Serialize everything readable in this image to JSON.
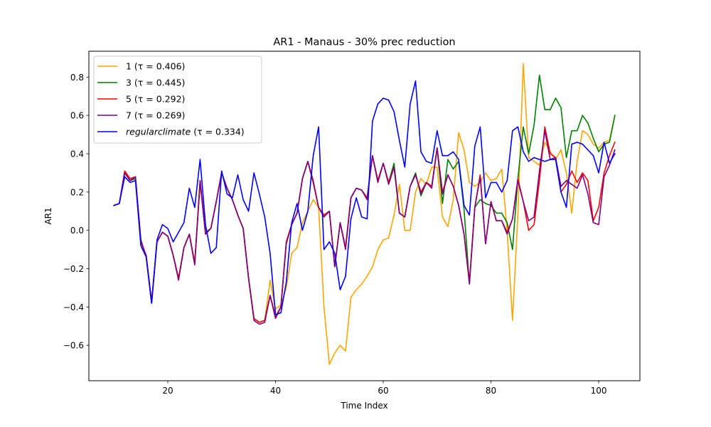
{
  "chart_data": {
    "type": "line",
    "title": "AR1 - Manaus - 30% prec reduction",
    "xlabel": "Time Index",
    "ylabel": "AR1",
    "xlim": [
      5.35,
      107.65
    ],
    "ylim": [
      -0.785,
      0.935
    ],
    "xticks": [
      20,
      40,
      60,
      80,
      100
    ],
    "yticks": [
      -0.6,
      -0.4,
      -0.2,
      0.0,
      0.2,
      0.4,
      0.6,
      0.8
    ],
    "ytick_labels": [
      "−0.6",
      "−0.4",
      "−0.2",
      "0.0",
      "0.2",
      "0.4",
      "0.6",
      "0.8"
    ],
    "grid": false,
    "legend_position": "upper-left",
    "x": [
      10,
      11,
      12,
      13,
      14,
      15,
      16,
      17,
      18,
      19,
      20,
      21,
      22,
      23,
      24,
      25,
      26,
      27,
      28,
      29,
      30,
      31,
      32,
      33,
      34,
      35,
      36,
      37,
      38,
      39,
      40,
      41,
      42,
      43,
      44,
      45,
      46,
      47,
      48,
      49,
      50,
      51,
      52,
      53,
      54,
      55,
      56,
      57,
      58,
      59,
      60,
      61,
      62,
      63,
      64,
      65,
      66,
      67,
      68,
      69,
      70,
      71,
      72,
      73,
      74,
      75,
      76,
      77,
      78,
      79,
      80,
      81,
      82,
      83,
      84,
      85,
      86,
      87,
      88,
      89,
      90,
      91,
      92,
      93,
      94,
      95,
      96,
      97,
      98,
      99,
      100,
      101,
      102,
      103
    ],
    "series": [
      {
        "name": "1",
        "tau_label": "(τ = 0.406)",
        "color": "#ffa500",
        "values": [
          0.13,
          0.14,
          0.3,
          0.26,
          0.27,
          -0.05,
          -0.14,
          -0.38,
          -0.06,
          -0.01,
          -0.03,
          -0.13,
          -0.25,
          -0.09,
          -0.02,
          -0.17,
          0.24,
          -0.01,
          0.01,
          0.15,
          0.3,
          0.22,
          0.16,
          0.08,
          0.01,
          -0.25,
          -0.46,
          -0.48,
          -0.47,
          -0.26,
          -0.41,
          -0.39,
          -0.3,
          -0.12,
          -0.09,
          0.04,
          0.1,
          0.16,
          0.12,
          -0.4,
          -0.7,
          -0.64,
          -0.6,
          -0.63,
          -0.35,
          -0.31,
          -0.28,
          -0.24,
          -0.19,
          -0.1,
          -0.05,
          -0.04,
          0.08,
          0.24,
          0.0,
          0.0,
          0.2,
          0.27,
          0.24,
          0.33,
          0.33,
          0.07,
          0.02,
          0.16,
          0.51,
          0.42,
          0.25,
          0.23,
          0.25,
          0.3,
          0.26,
          0.27,
          0.32,
          0.0,
          -0.47,
          0.08,
          0.87,
          0.38,
          0.36,
          0.34,
          0.46,
          0.41,
          0.37,
          0.42,
          0.3,
          0.09,
          0.36,
          0.52,
          0.5,
          0.45,
          0.43,
          0.46,
          0.47,
          0.6
        ]
      },
      {
        "name": "3",
        "tau_label": "(τ = 0.445)",
        "color": "#008000",
        "values": [
          0.13,
          0.14,
          0.3,
          0.26,
          0.27,
          -0.05,
          -0.14,
          -0.38,
          -0.06,
          -0.01,
          -0.03,
          -0.13,
          -0.25,
          -0.09,
          -0.02,
          -0.17,
          0.25,
          -0.01,
          0.01,
          0.15,
          0.3,
          0.22,
          0.16,
          0.08,
          0.01,
          -0.25,
          -0.46,
          -0.48,
          -0.47,
          -0.34,
          -0.45,
          -0.4,
          -0.06,
          0.03,
          0.09,
          0.27,
          0.36,
          0.25,
          0.12,
          0.08,
          0.1,
          -0.19,
          0.04,
          -0.09,
          0.17,
          0.22,
          0.21,
          0.17,
          0.39,
          0.26,
          0.35,
          0.25,
          0.35,
          0.09,
          0.07,
          0.23,
          0.3,
          0.18,
          0.25,
          0.23,
          0.43,
          0.14,
          0.37,
          0.32,
          0.36,
          0.11,
          -0.28,
          0.12,
          0.16,
          0.14,
          0.13,
          0.09,
          0.09,
          0.04,
          -0.1,
          0.27,
          0.54,
          0.4,
          0.55,
          0.81,
          0.63,
          0.63,
          0.69,
          0.64,
          0.38,
          0.52,
          0.52,
          0.6,
          0.56,
          0.48,
          0.41,
          0.45,
          0.46,
          0.6
        ]
      },
      {
        "name": "5",
        "tau_label": "(τ = 0.292)",
        "color": "#ff0000",
        "values": [
          0.13,
          0.14,
          0.31,
          0.27,
          0.28,
          -0.06,
          -0.13,
          -0.37,
          -0.06,
          -0.01,
          -0.03,
          -0.13,
          -0.25,
          -0.09,
          -0.02,
          -0.17,
          0.26,
          -0.02,
          0.01,
          0.15,
          0.3,
          0.22,
          0.16,
          0.08,
          0.01,
          -0.25,
          -0.46,
          -0.48,
          -0.47,
          -0.34,
          -0.45,
          -0.4,
          -0.06,
          0.03,
          0.09,
          0.27,
          0.36,
          0.26,
          0.12,
          0.08,
          0.1,
          -0.19,
          0.04,
          -0.09,
          0.17,
          0.22,
          0.21,
          0.17,
          0.39,
          0.26,
          0.35,
          0.25,
          0.33,
          0.09,
          0.07,
          0.23,
          0.29,
          0.2,
          0.25,
          0.23,
          0.43,
          0.2,
          0.29,
          0.23,
          0.13,
          -0.02,
          -0.27,
          0.12,
          0.29,
          -0.07,
          0.15,
          0.05,
          0.05,
          -0.01,
          0.06,
          0.27,
          0.15,
          0.0,
          0.03,
          0.26,
          0.54,
          0.4,
          0.38,
          0.2,
          0.24,
          0.31,
          0.25,
          0.3,
          0.26,
          0.05,
          0.12,
          0.3,
          0.39,
          0.46
        ]
      },
      {
        "name": "7",
        "tau_label": "(τ = 0.269)",
        "color": "#800080",
        "values": [
          0.13,
          0.14,
          0.3,
          0.26,
          0.28,
          -0.05,
          -0.14,
          -0.38,
          -0.06,
          -0.01,
          -0.03,
          -0.13,
          -0.26,
          -0.09,
          -0.02,
          -0.18,
          0.26,
          -0.02,
          0.01,
          0.15,
          0.3,
          0.22,
          0.16,
          0.08,
          0.01,
          -0.25,
          -0.47,
          -0.49,
          -0.48,
          -0.34,
          -0.46,
          -0.4,
          -0.07,
          0.03,
          0.09,
          0.27,
          0.36,
          0.25,
          0.12,
          0.07,
          0.1,
          -0.19,
          0.04,
          -0.1,
          0.17,
          0.22,
          0.21,
          0.16,
          0.39,
          0.25,
          0.35,
          0.24,
          0.33,
          0.09,
          0.07,
          0.23,
          0.29,
          0.19,
          0.25,
          0.22,
          0.43,
          0.19,
          0.29,
          0.23,
          0.13,
          -0.02,
          -0.28,
          0.12,
          0.28,
          -0.07,
          0.15,
          0.05,
          0.05,
          -0.02,
          0.06,
          0.26,
          0.15,
          0.05,
          0.07,
          0.31,
          0.52,
          0.37,
          0.38,
          0.23,
          0.26,
          0.24,
          0.22,
          0.29,
          0.19,
          0.04,
          0.03,
          0.28,
          0.34,
          0.42
        ]
      },
      {
        "name": "regularclimate",
        "tau_label": "(τ = 0.334)",
        "color": "#0000ff",
        "values": [
          0.13,
          0.14,
          0.28,
          0.25,
          0.26,
          -0.08,
          -0.14,
          -0.38,
          -0.05,
          0.03,
          0.01,
          -0.06,
          -0.01,
          0.04,
          0.22,
          0.12,
          0.37,
          0.03,
          -0.12,
          -0.09,
          0.31,
          0.19,
          0.17,
          0.29,
          0.16,
          0.1,
          0.3,
          0.19,
          0.07,
          -0.12,
          -0.44,
          -0.43,
          -0.27,
          0.04,
          0.14,
          0.0,
          0.1,
          0.39,
          0.54,
          -0.1,
          -0.06,
          -0.12,
          -0.31,
          -0.24,
          0.06,
          0.17,
          0.07,
          0.06,
          0.57,
          0.66,
          0.69,
          0.68,
          0.62,
          0.47,
          0.33,
          0.66,
          0.78,
          0.41,
          0.36,
          0.35,
          0.52,
          0.39,
          0.39,
          0.41,
          0.37,
          0.13,
          0.08,
          0.44,
          0.54,
          0.17,
          0.25,
          0.25,
          0.2,
          0.26,
          0.52,
          0.54,
          0.41,
          0.36,
          0.38,
          0.37,
          0.36,
          0.37,
          0.37,
          0.2,
          0.12,
          0.45,
          0.46,
          0.45,
          0.42,
          0.39,
          0.3,
          0.46,
          0.35,
          0.4
        ]
      }
    ]
  }
}
